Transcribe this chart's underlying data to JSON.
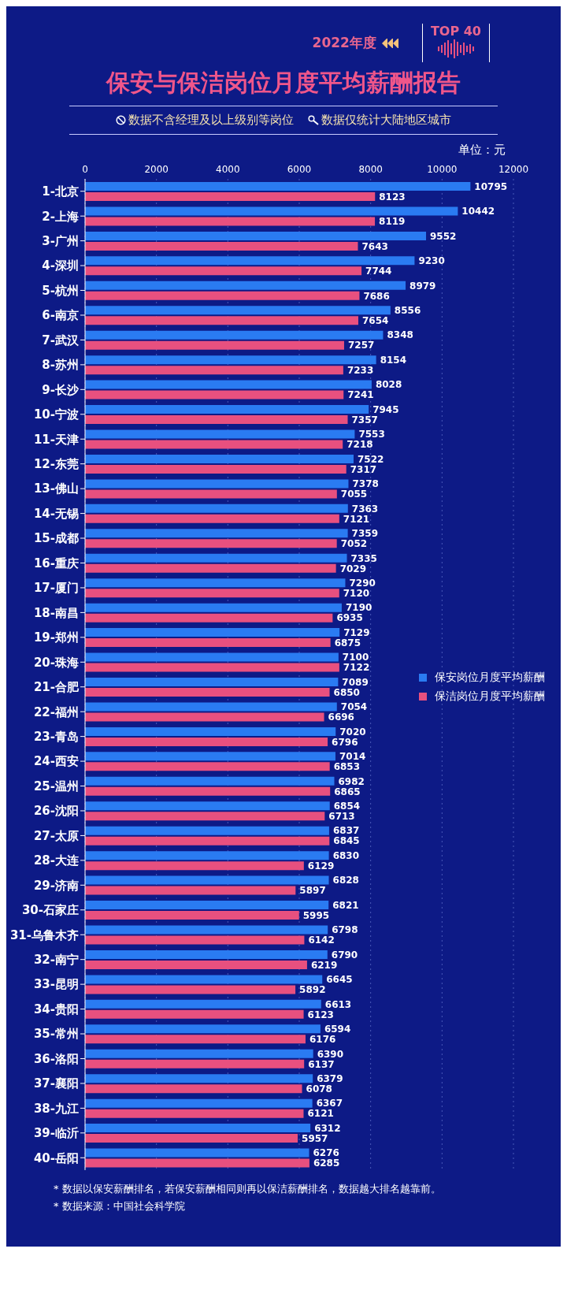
{
  "chart_data": {
    "type": "bar",
    "orientation": "horizontal",
    "title": "保安与保洁岗位月度平均薪酬报告",
    "subtitle": "2022年度",
    "annotations": [
      "TOP 40",
      "数据不含经理及以上级别等岗位",
      "数据仅统计大陆地区城市",
      "单位：元",
      "* 数据以保安薪酬排名，若保安薪酬相同则再以保洁薪酬排名，数据越大排名越靠前。",
      "* 数据来源：中国社会科学院"
    ],
    "categories": [
      "1-北京",
      "2-上海",
      "3-广州",
      "4-深圳",
      "5-杭州",
      "6-南京",
      "7-武汉",
      "8-苏州",
      "9-长沙",
      "10-宁波",
      "11-天津",
      "12-东莞",
      "13-佛山",
      "14-无锡",
      "15-成都",
      "16-重庆",
      "17-厦门",
      "18-南昌",
      "19-郑州",
      "20-珠海",
      "21-合肥",
      "22-福州",
      "23-青岛",
      "24-西安",
      "25-温州",
      "26-沈阳",
      "27-太原",
      "28-大连",
      "29-济南",
      "30-石家庄",
      "31-乌鲁木齐",
      "32-南宁",
      "33-昆明",
      "34-贵阳",
      "35-常州",
      "36-洛阳",
      "37-襄阳",
      "38-九江",
      "39-临沂",
      "40-岳阳"
    ],
    "series": [
      {
        "name": "保安岗位月度平均薪酬",
        "color": "#2a7bf2",
        "values": [
          10795,
          10442,
          9552,
          9230,
          8979,
          8556,
          8348,
          8154,
          8028,
          7945,
          7553,
          7522,
          7378,
          7363,
          7359,
          7335,
          7290,
          7190,
          7129,
          7100,
          7089,
          7054,
          7020,
          7014,
          6982,
          6854,
          6837,
          6830,
          6828,
          6821,
          6798,
          6790,
          6645,
          6613,
          6594,
          6390,
          6379,
          6367,
          6312,
          6276
        ]
      },
      {
        "name": "保洁岗位月度平均薪酬",
        "color": "#e8507f",
        "values": [
          8123,
          8119,
          7643,
          7744,
          7686,
          7654,
          7257,
          7233,
          7241,
          7357,
          7218,
          7317,
          7055,
          7121,
          7052,
          7029,
          7120,
          6935,
          6875,
          7122,
          6850,
          6696,
          6796,
          6853,
          6865,
          6713,
          6845,
          6129,
          5897,
          5995,
          6142,
          6219,
          5892,
          6123,
          6176,
          6137,
          6078,
          6121,
          5957,
          6285
        ]
      }
    ],
    "xlim": [
      0,
      12000
    ],
    "xticks": [
      0,
      2000,
      4000,
      6000,
      8000,
      10000,
      12000
    ],
    "grid": "x",
    "legend": "right",
    "data_labels": true
  }
}
